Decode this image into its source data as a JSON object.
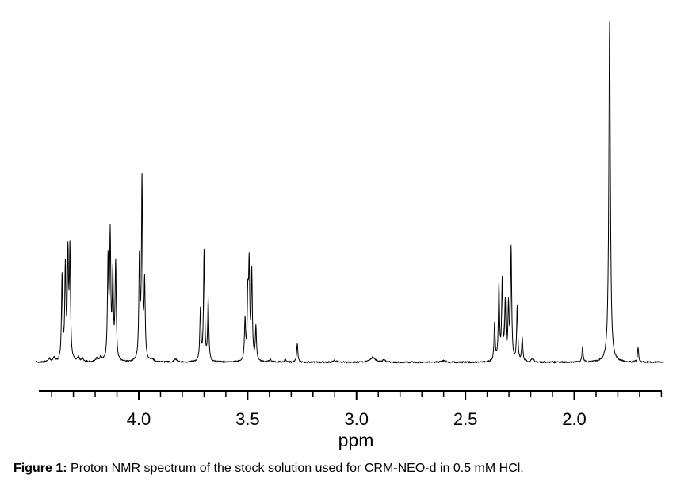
{
  "figure": {
    "caption_label": "Figure 1:",
    "caption_text": "Proton NMR spectrum of the stock solution used for CRM-NEO-d in 0.5 mM HCl."
  },
  "chart_data": {
    "type": "line",
    "kind": "1H NMR spectrum",
    "title": "",
    "xlabel": "ppm",
    "ylabel": "",
    "grid": false,
    "legend": false,
    "x_axis": {
      "unit": "ppm",
      "range_left_ppm": 4.46,
      "range_right_ppm": 1.6,
      "inverted": true,
      "major_ticks": [
        4.0,
        3.5,
        3.0,
        2.5,
        2.0
      ],
      "major_tick_labels": [
        "4.0",
        "3.5",
        "3.0",
        "2.5",
        "2.0"
      ],
      "minor_tick_step": 0.1
    },
    "y_axis": {
      "visible": false,
      "intensity_normalized_to_tallest_peak": 1.0
    },
    "trace_color": "#000000",
    "peaks": [
      {
        "name": "multiplet-4.33",
        "center_ppm": 4.33,
        "lines": [
          {
            "ppm": 4.352,
            "intensity": 0.244
          },
          {
            "ppm": 4.337,
            "intensity": 0.267
          },
          {
            "ppm": 4.325,
            "intensity": 0.3
          },
          {
            "ppm": 4.316,
            "intensity": 0.314
          }
        ]
      },
      {
        "name": "multiplet-4.12",
        "center_ppm": 4.12,
        "lines": [
          {
            "ppm": 4.141,
            "intensity": 0.291
          },
          {
            "ppm": 4.131,
            "intensity": 0.358
          },
          {
            "ppm": 4.119,
            "intensity": 0.242
          },
          {
            "ppm": 4.106,
            "intensity": 0.284
          }
        ]
      },
      {
        "name": "multiplet-3.99",
        "center_ppm": 3.99,
        "lines": [
          {
            "ppm": 3.997,
            "intensity": 0.288
          },
          {
            "ppm": 3.985,
            "intensity": 0.523
          },
          {
            "ppm": 3.973,
            "intensity": 0.219
          }
        ]
      },
      {
        "name": "multiplet-3.70",
        "center_ppm": 3.7,
        "lines": [
          {
            "ppm": 3.717,
            "intensity": 0.149
          },
          {
            "ppm": 3.7,
            "intensity": 0.323
          },
          {
            "ppm": 3.681,
            "intensity": 0.179
          }
        ]
      },
      {
        "name": "multiplet-3.49",
        "center_ppm": 3.49,
        "lines": [
          {
            "ppm": 3.512,
            "intensity": 0.116
          },
          {
            "ppm": 3.499,
            "intensity": 0.174
          },
          {
            "ppm": 3.493,
            "intensity": 0.265
          },
          {
            "ppm": 3.481,
            "intensity": 0.256
          },
          {
            "ppm": 3.462,
            "intensity": 0.098
          }
        ]
      },
      {
        "name": "singlet-3.27",
        "center_ppm": 3.27,
        "lines": [
          {
            "ppm": 3.272,
            "intensity": 0.056
          }
        ]
      },
      {
        "name": "multiplet-2.30",
        "center_ppm": 2.3,
        "lines": [
          {
            "ppm": 2.366,
            "intensity": 0.109
          },
          {
            "ppm": 2.346,
            "intensity": 0.221
          },
          {
            "ppm": 2.331,
            "intensity": 0.23
          },
          {
            "ppm": 2.317,
            "intensity": 0.167
          },
          {
            "ppm": 2.302,
            "intensity": 0.158
          },
          {
            "ppm": 2.29,
            "intensity": 0.326
          },
          {
            "ppm": 2.262,
            "intensity": 0.16
          },
          {
            "ppm": 2.239,
            "intensity": 0.07
          }
        ]
      },
      {
        "name": "singlet-1.96",
        "center_ppm": 1.96,
        "lines": [
          {
            "ppm": 1.962,
            "intensity": 0.044
          }
        ]
      },
      {
        "name": "singlet-1.84-tallest",
        "center_ppm": 1.84,
        "lines": [
          {
            "ppm": 1.838,
            "intensity": 1.0,
            "width": 1.15
          }
        ]
      },
      {
        "name": "singlet-1.71",
        "center_ppm": 1.71,
        "lines": [
          {
            "ppm": 1.707,
            "intensity": 0.044
          }
        ]
      }
    ],
    "noise_bumps": [
      {
        "ppm": 4.411,
        "intensity": 0.01,
        "width": 1.5
      },
      {
        "ppm": 4.389,
        "intensity": 0.012,
        "width": 1.5
      },
      {
        "ppm": 4.277,
        "intensity": 0.012,
        "width": 1.5
      },
      {
        "ppm": 4.258,
        "intensity": 0.009,
        "width": 1.5
      },
      {
        "ppm": 4.193,
        "intensity": 0.009,
        "width": 1.5
      },
      {
        "ppm": 4.175,
        "intensity": 0.012,
        "width": 1.5
      },
      {
        "ppm": 3.938,
        "intensity": 0.007,
        "width": 2
      },
      {
        "ppm": 3.829,
        "intensity": 0.009,
        "width": 2
      },
      {
        "ppm": 3.396,
        "intensity": 0.009,
        "width": 1.5
      },
      {
        "ppm": 3.327,
        "intensity": 0.007,
        "width": 1.5
      },
      {
        "ppm": 3.1,
        "intensity": 0.005,
        "width": 3
      },
      {
        "ppm": 2.926,
        "intensity": 0.014,
        "width": 4
      },
      {
        "ppm": 2.875,
        "intensity": 0.007,
        "width": 2
      },
      {
        "ppm": 2.6,
        "intensity": 0.005,
        "width": 3
      },
      {
        "ppm": 2.191,
        "intensity": 0.009,
        "width": 2
      }
    ]
  }
}
